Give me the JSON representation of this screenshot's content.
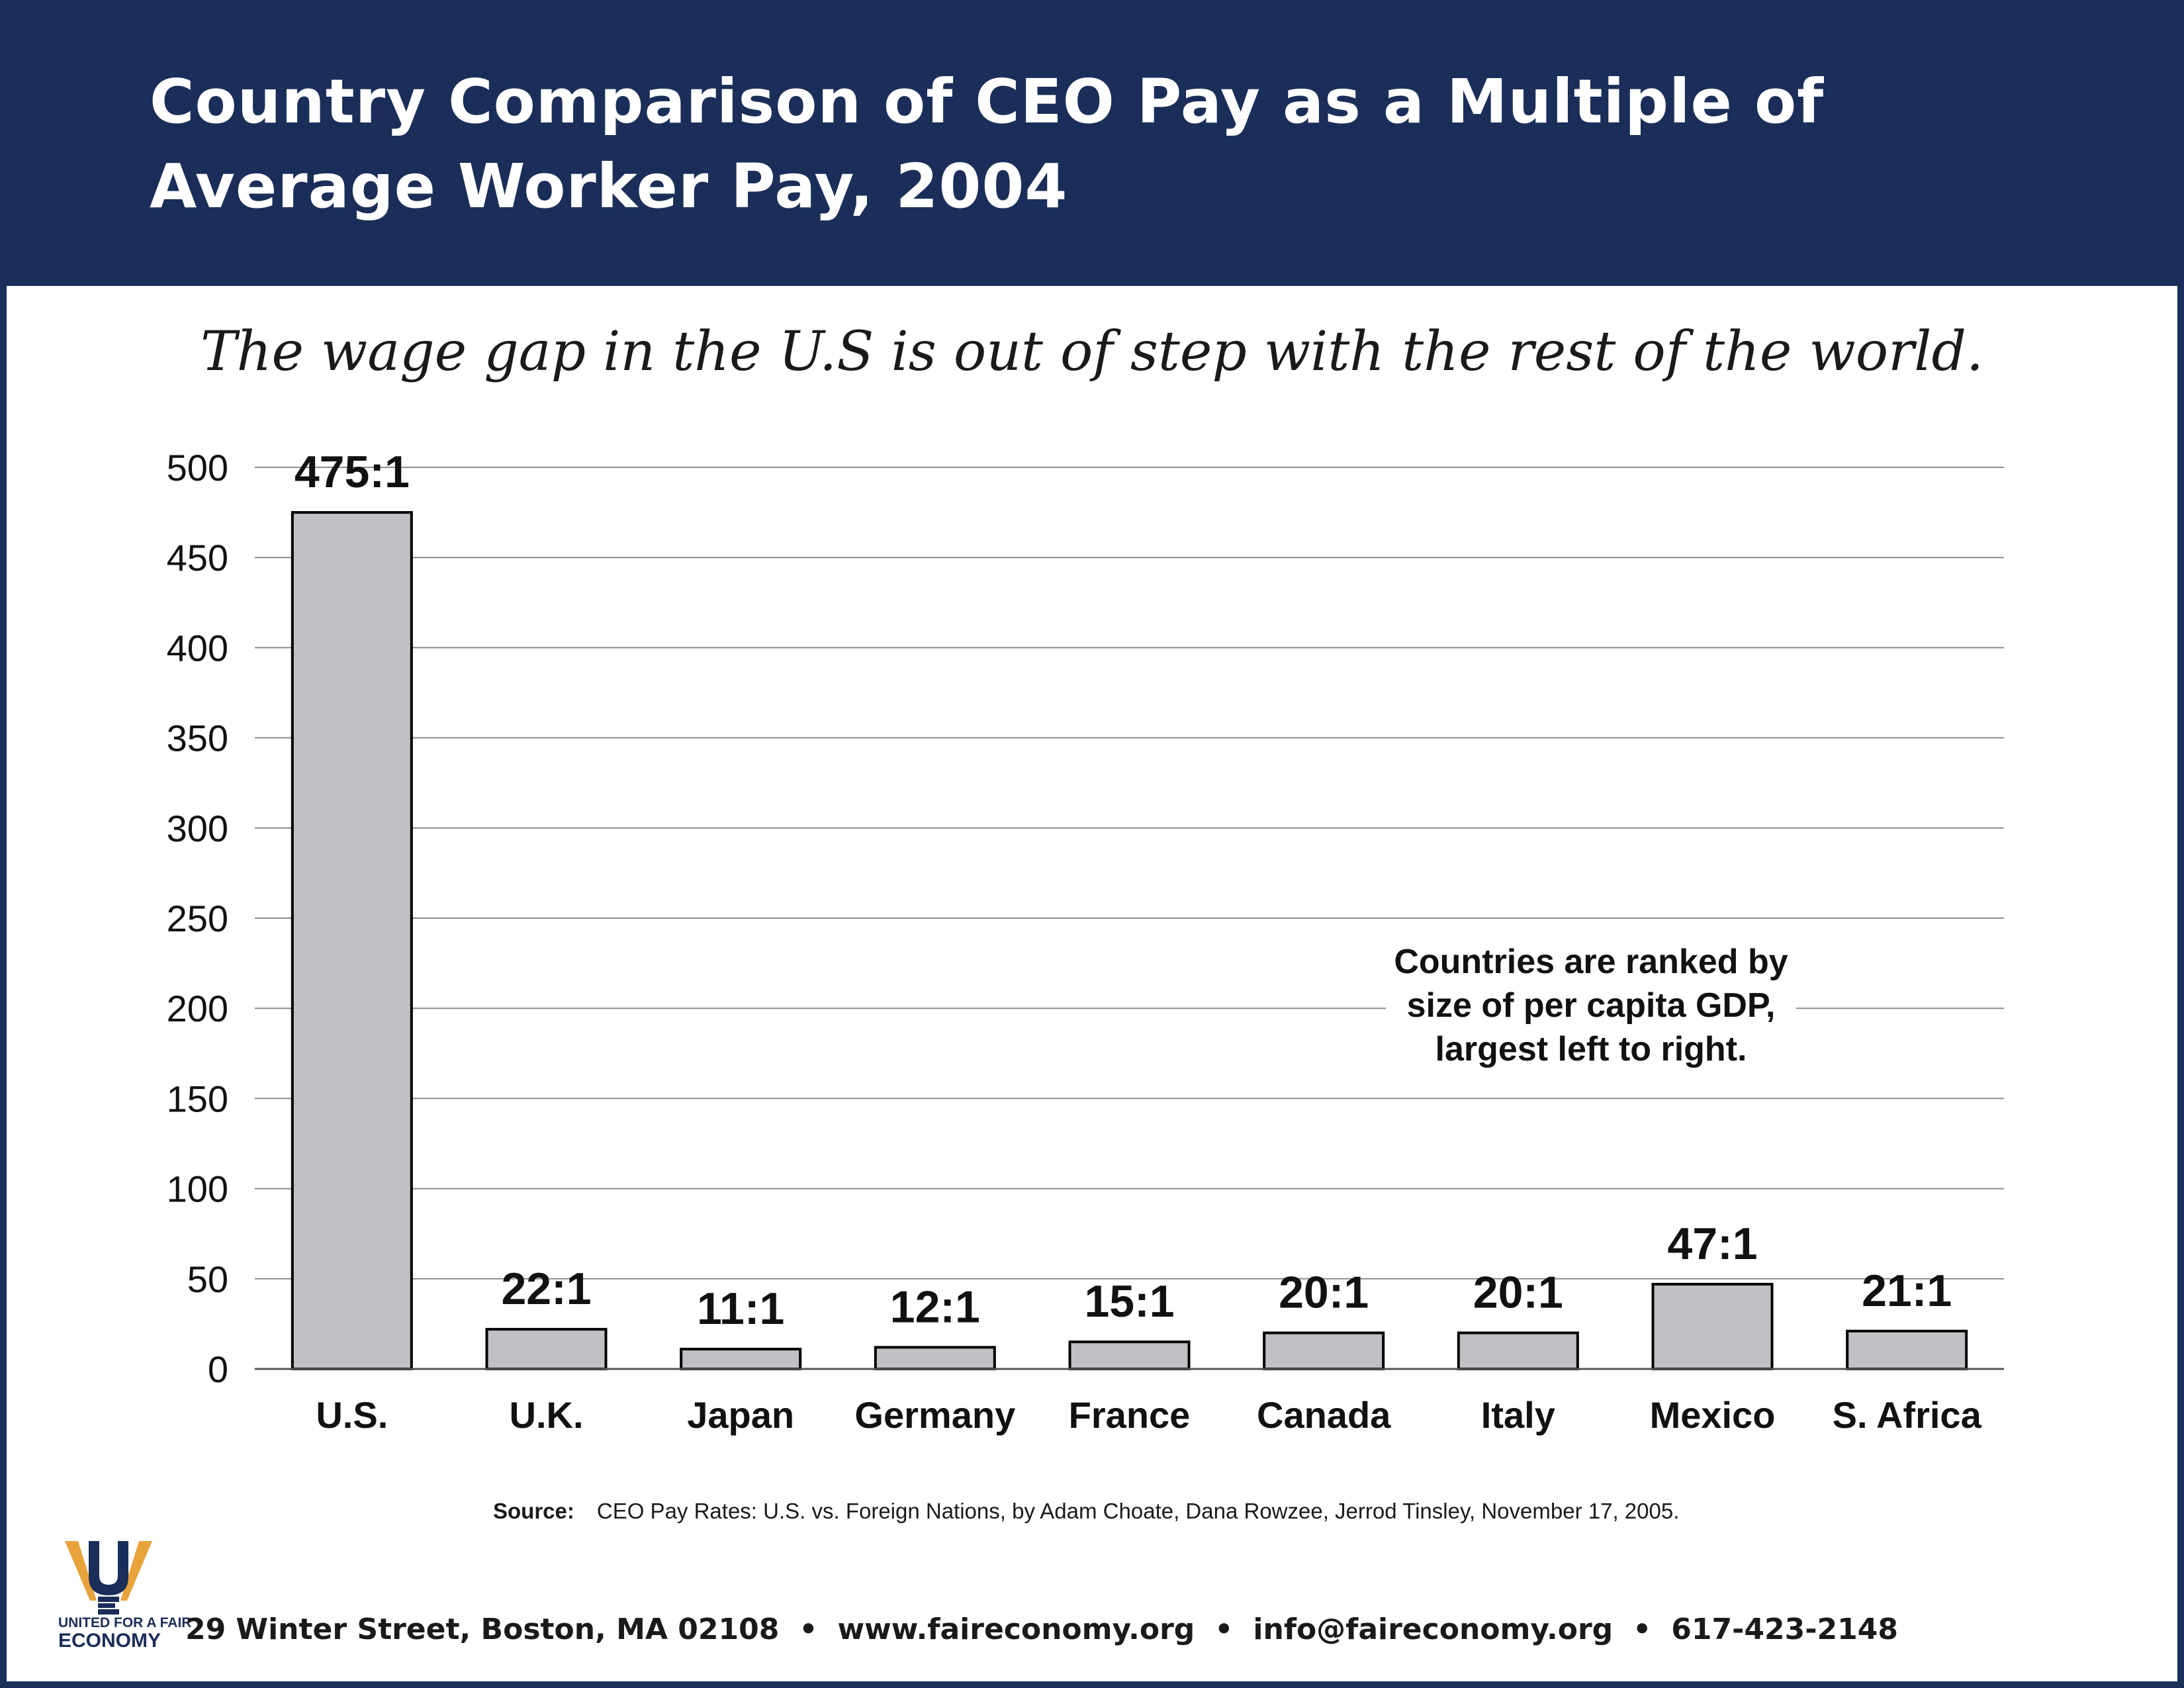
{
  "header": {
    "title_line1": "Country Comparison of CEO Pay as a Multiple of",
    "title_line2": "Average Worker Pay, 2004"
  },
  "subtitle": "The wage gap in the U.S is out of step with the rest of the world.",
  "chart_data": {
    "type": "bar",
    "title": "Country Comparison of CEO Pay as a Multiple of Average Worker Pay, 2004",
    "categories": [
      "U.S.",
      "U.K.",
      "Japan",
      "Germany",
      "France",
      "Canada",
      "Italy",
      "Mexico",
      "S. Africa"
    ],
    "values": [
      475,
      22,
      11,
      12,
      15,
      20,
      20,
      47,
      21
    ],
    "data_labels": [
      "475:1",
      "22:1",
      "11:1",
      "12:1",
      "15:1",
      "20:1",
      "20:1",
      "47:1",
      "21:1"
    ],
    "ylim": [
      0,
      500
    ],
    "yticks": [
      0,
      50,
      100,
      150,
      200,
      250,
      300,
      350,
      400,
      450,
      500
    ],
    "xlabel": "",
    "ylabel": "",
    "grid": true,
    "bar_color": "#c0c1c4",
    "annotation_lines": [
      "Countries are ranked by",
      "size of per capita GDP,",
      "largest left to right."
    ]
  },
  "source": {
    "label": "Source:",
    "text": "CEO Pay Rates: U.S. vs. Foreign Nations, by Adam Choate, Dana Rowzee, Jerrod Tinsley, November 17, 2005."
  },
  "logo": {
    "line1": "UNITED FOR A FAIR",
    "line2": "ECONOMY"
  },
  "footer": {
    "address": "29 Winter Street, Boston, MA 02108",
    "website": "www.faireconomy.org",
    "email": "info@faireconomy.org",
    "phone": "617-423-2148",
    "separator": "•"
  },
  "colors": {
    "header_bg": "#1b2e59",
    "bar": "#c0c1c4",
    "logo_orange": "#e8a33c"
  }
}
